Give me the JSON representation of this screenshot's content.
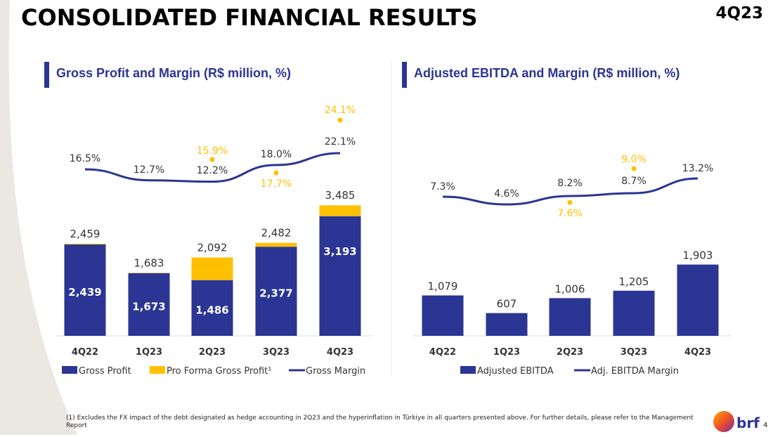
{
  "title": "CONSOLIDATED FINANCIAL RESULTS",
  "period": "4Q23",
  "footnote": "(1) Excludes the FX impact of the debt designated as hedge accounting in 2Q23 and the hyperinflation in Türkiye in all quarters presented above. For further details, please refer to the Management Report",
  "page_number": "4",
  "logo_text": "brf",
  "colors": {
    "navy": "#2b3593",
    "yellow": "#ffc000",
    "text": "#333333"
  },
  "chart_data": [
    {
      "type": "bar",
      "title": "Gross Profit and Margin (R$ million, %)",
      "categories": [
        "4Q22",
        "1Q23",
        "2Q23",
        "3Q23",
        "4Q23"
      ],
      "series": [
        {
          "name": "Gross Profit",
          "type": "bar",
          "values": [
            2439,
            1673,
            1486,
            2377,
            3193
          ],
          "labels": [
            "2,439",
            "1,673",
            "1,486",
            "2,377",
            "3,193"
          ]
        },
        {
          "name": "Pro Forma Gross Profit¹",
          "type": "bar-total",
          "values": [
            2459,
            1683,
            2092,
            2482,
            3485
          ],
          "labels": [
            "2,459",
            "1,683",
            "2,092",
            "2,482",
            "3,485"
          ]
        },
        {
          "name": "Gross Margin",
          "type": "line",
          "values": [
            16.5,
            12.7,
            12.2,
            18.0,
            22.1
          ],
          "labels": [
            "16.5%",
            "12.7%",
            "12.2%",
            "18.0%",
            "22.1%"
          ]
        },
        {
          "name": "Pro Forma Gross Margin",
          "type": "dot",
          "values": [
            null,
            null,
            15.9,
            17.7,
            24.1
          ],
          "labels": [
            "",
            "",
            "15.9%",
            "17.7%",
            "24.1%"
          ]
        }
      ],
      "legend": [
        "Gross Profit",
        "Pro Forma Gross Profit¹",
        "Gross Margin"
      ],
      "legend_placement": "bottom"
    },
    {
      "type": "bar",
      "title": "Adjusted EBITDA and Margin (R$ million, %)",
      "categories": [
        "4Q22",
        "1Q23",
        "2Q23",
        "3Q23",
        "4Q23"
      ],
      "series": [
        {
          "name": "Adjusted EBITDA",
          "type": "bar",
          "values": [
            1079,
            607,
            1006,
            1205,
            1903
          ],
          "labels": [
            "1,079",
            "607",
            "1,006",
            "1,205",
            "1,903"
          ]
        },
        {
          "name": "Adj. EBITDA Margin",
          "type": "line",
          "values": [
            7.3,
            4.6,
            8.2,
            8.7,
            13.2
          ],
          "labels": [
            "7.3%",
            "4.6%",
            "8.2%",
            "8.7%",
            "13.2%"
          ]
        },
        {
          "name": "Pro Forma Adj. EBITDA Margin",
          "type": "dot",
          "values": [
            null,
            null,
            7.6,
            9.0,
            null
          ],
          "labels": [
            "",
            "",
            "7.6%",
            "9.0%",
            ""
          ]
        }
      ],
      "legend": [
        "Adjusted EBITDA",
        "Adj. EBITDA Margin"
      ],
      "legend_placement": "bottom"
    }
  ]
}
